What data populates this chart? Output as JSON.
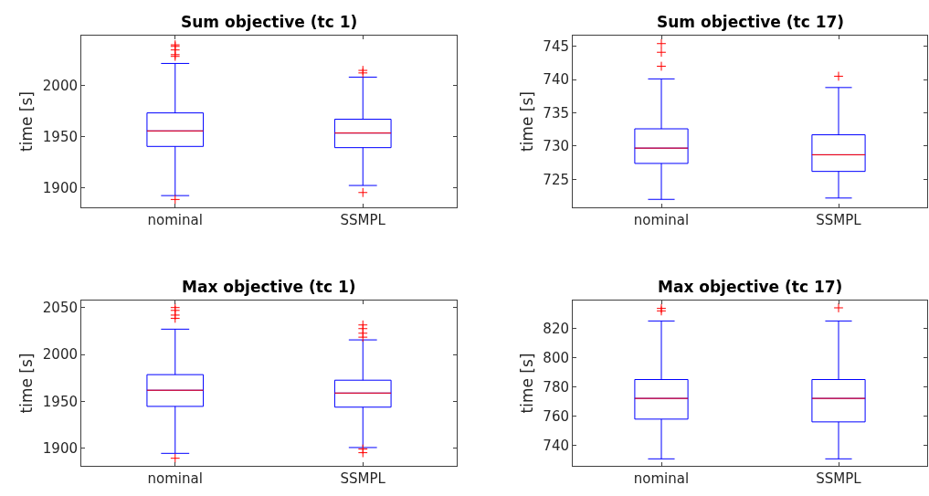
{
  "chart_data": [
    {
      "type": "box",
      "title": "Sum objective (tc 1)",
      "ylabel": "time [s]",
      "categories": [
        "nominal",
        "SSMPL"
      ],
      "ylim": [
        1881,
        2049
      ],
      "yticks": [
        1900,
        1950,
        2000
      ],
      "color": "#0000ff",
      "marker": "cross",
      "boxes": [
        {
          "low": 1892.5,
          "q1": 1940.6,
          "median": 1955.8,
          "q3": 1973.4,
          "high": 2021.8,
          "outliers": [
            2040,
            2038.5,
            2035,
            2030.4,
            2028.7,
            1888.7
          ]
        },
        {
          "low": 1902.4,
          "q1": 1939.4,
          "median": 1953.7,
          "q3": 1967.2,
          "high": 2008.4,
          "outliers": [
            2015,
            2012.5,
            1895.5
          ]
        }
      ]
    },
    {
      "type": "box",
      "title": "Sum objective (tc 17)",
      "ylabel": "time [s]",
      "categories": [
        "nominal",
        "SSMPL"
      ],
      "ylim": [
        720.8,
        746.6
      ],
      "yticks": [
        725,
        730,
        735,
        740,
        745
      ],
      "color": "#0000ff",
      "marker": "cross",
      "boxes": [
        {
          "low": 722.0,
          "q1": 727.4,
          "median": 729.7,
          "q3": 732.6,
          "high": 740.1,
          "outliers": [
            745.4,
            744.1,
            742.0
          ]
        },
        {
          "low": 722.2,
          "q1": 726.2,
          "median": 728.7,
          "q3": 731.7,
          "high": 738.8,
          "outliers": [
            740.5
          ]
        }
      ]
    },
    {
      "type": "box",
      "title": "Max objective (tc 1)",
      "ylabel": "time [s]",
      "categories": [
        "nominal",
        "SSMPL"
      ],
      "ylim": [
        1881.5,
        2057.5
      ],
      "yticks": [
        1900,
        1950,
        2000,
        2050
      ],
      "color": "#0000ff",
      "marker": "cross",
      "boxes": [
        {
          "low": 1894.8,
          "q1": 1944.8,
          "median": 1962,
          "q3": 1978.6,
          "high": 2027,
          "outliers": [
            2050,
            2047,
            2042,
            2038.6,
            1889.6
          ]
        },
        {
          "low": 1901,
          "q1": 1944,
          "median": 1959,
          "q3": 1972.7,
          "high": 2015.6,
          "outliers": [
            2031.5,
            2027.6,
            2022.7,
            2018.5,
            1899.4,
            1895.5
          ]
        }
      ]
    },
    {
      "type": "box",
      "title": "Max objective (tc 17)",
      "ylabel": "time [s]",
      "categories": [
        "nominal",
        "SSMPL"
      ],
      "ylim": [
        726,
        839.2
      ],
      "yticks": [
        740,
        760,
        780,
        800,
        820
      ],
      "color": "#0000ff",
      "marker": "cross",
      "boxes": [
        {
          "low": 730.8,
          "q1": 758,
          "median": 772.2,
          "q3": 785.1,
          "high": 825.2,
          "outliers": [
            833.8,
            832.1
          ]
        },
        {
          "low": 730.8,
          "q1": 756.1,
          "median": 772.2,
          "q3": 785.1,
          "high": 825.2,
          "outliers": [
            834.2
          ]
        }
      ]
    }
  ]
}
